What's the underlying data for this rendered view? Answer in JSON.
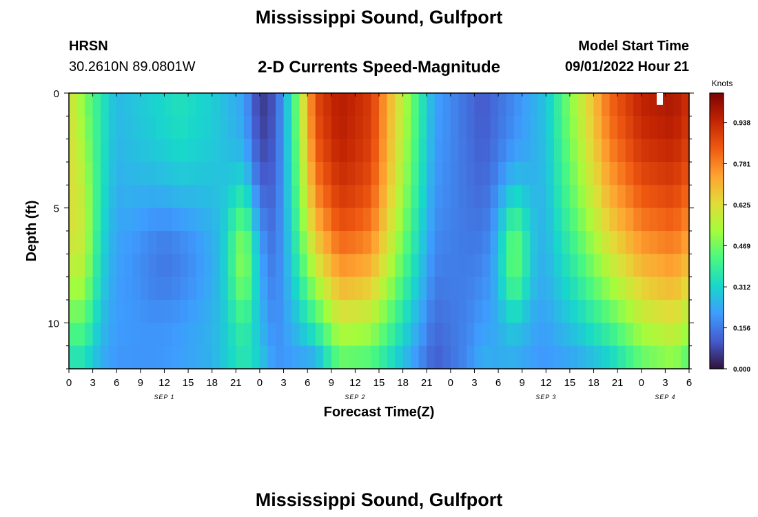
{
  "page": {
    "title": "Mississippi Sound, Gulfport",
    "station": "HRSN",
    "coords": "30.2610N  89.0801W",
    "subtitle": "2-D Currents Speed-Magnitude",
    "start_label": "Model Start Time",
    "start_value": "09/01/2022 Hour 21",
    "bottom_title": "Mississippi Sound, Gulfport"
  },
  "chart_data": {
    "type": "heatmap",
    "title": "2-D Currents Speed-Magnitude",
    "xlabel": "Forecast Time(Z)",
    "ylabel": "Depth (ft)",
    "x_tick_labels": [
      "0",
      "3",
      "6",
      "9",
      "12",
      "15",
      "18",
      "21",
      "0",
      "3",
      "6",
      "9",
      "12",
      "15",
      "18",
      "21",
      "0",
      "3",
      "6",
      "9",
      "12",
      "15",
      "18",
      "21",
      "0",
      "3",
      "6"
    ],
    "x_range_hours": [
      0,
      78
    ],
    "x_date_labels": [
      {
        "label": "SEP 1",
        "hour": 12
      },
      {
        "label": "SEP 2",
        "hour": 36
      },
      {
        "label": "SEP 3",
        "hour": 60
      },
      {
        "label": "SEP 4",
        "hour": 75
      }
    ],
    "y_ticks": [
      0,
      5,
      10
    ],
    "y_range_ft": [
      0,
      12
    ],
    "y_inverted": true,
    "colorbar": {
      "label": "Knots",
      "ticks": [
        "0.000",
        "0.156",
        "0.312",
        "0.469",
        "0.625",
        "0.781",
        "0.938"
      ],
      "range": [
        0,
        1.05
      ],
      "colormap": "turbo"
    },
    "keyframes_hours": [
      0,
      2,
      6,
      10,
      14,
      18,
      22,
      24,
      26,
      28,
      31,
      34,
      38,
      42,
      46,
      50,
      52,
      56,
      60,
      64,
      68,
      72,
      76,
      78
    ],
    "keyframes_speed_surface": [
      0.6,
      0.45,
      0.26,
      0.3,
      0.34,
      0.3,
      0.22,
      0.05,
      0.1,
      0.35,
      0.86,
      0.95,
      0.88,
      0.55,
      0.22,
      0.14,
      0.1,
      0.18,
      0.28,
      0.55,
      0.82,
      0.95,
      0.98,
      0.92
    ],
    "keyframes_speed_bottom": [
      0.28,
      0.25,
      0.2,
      0.2,
      0.22,
      0.25,
      0.35,
      0.3,
      0.2,
      0.2,
      0.2,
      0.4,
      0.38,
      0.25,
      0.1,
      0.18,
      0.25,
      0.22,
      0.2,
      0.22,
      0.28,
      0.42,
      0.48,
      0.4
    ],
    "mid_depth_speed_bumps": [
      {
        "hour": 1.5,
        "depth_ft": 7,
        "delta": 0.18,
        "width_hours": 2,
        "height_ft": 5
      },
      {
        "hour": 13,
        "depth_ft": 7,
        "delta": -0.12,
        "width_hours": 5,
        "height_ft": 3
      },
      {
        "hour": 22,
        "depth_ft": 7,
        "delta": 0.22,
        "width_hours": 2,
        "height_ft": 3
      },
      {
        "hour": 56,
        "depth_ft": 7,
        "delta": 0.25,
        "width_hours": 2,
        "height_ft": 3
      },
      {
        "hour": 36,
        "depth_ft": 6,
        "delta": 0.08,
        "width_hours": 6,
        "height_ft": 5
      }
    ]
  }
}
